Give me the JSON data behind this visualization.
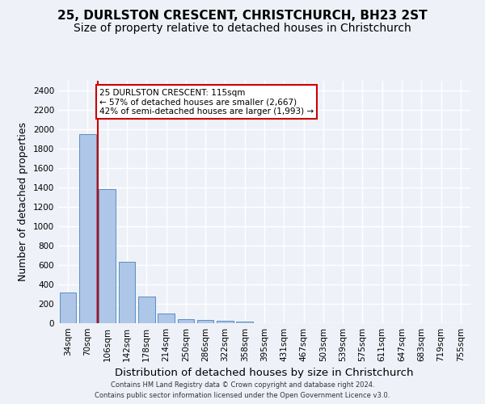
{
  "title1": "25, DURLSTON CRESCENT, CHRISTCHURCH, BH23 2ST",
  "title2": "Size of property relative to detached houses in Christchurch",
  "xlabel": "Distribution of detached houses by size in Christchurch",
  "ylabel": "Number of detached properties",
  "footnote1": "Contains HM Land Registry data © Crown copyright and database right 2024.",
  "footnote2": "Contains public sector information licensed under the Open Government Licence v3.0.",
  "bar_labels": [
    "34sqm",
    "70sqm",
    "106sqm",
    "142sqm",
    "178sqm",
    "214sqm",
    "250sqm",
    "286sqm",
    "322sqm",
    "358sqm",
    "395sqm",
    "431sqm",
    "467sqm",
    "503sqm",
    "539sqm",
    "575sqm",
    "611sqm",
    "647sqm",
    "683sqm",
    "719sqm",
    "755sqm"
  ],
  "bar_values": [
    315,
    1950,
    1385,
    630,
    275,
    100,
    45,
    32,
    22,
    18,
    0,
    0,
    0,
    0,
    0,
    0,
    0,
    0,
    0,
    0,
    0
  ],
  "bar_color": "#aec6e8",
  "bar_edge_color": "#5a8fc2",
  "ref_line_color": "#cc0000",
  "ref_line_x": 1.5,
  "annotation_title": "25 DURLSTON CRESCENT: 115sqm",
  "annotation_line1": "← 57% of detached houses are smaller (2,667)",
  "annotation_line2": "42% of semi-detached houses are larger (1,993) →",
  "annotation_box_color": "#ffffff",
  "annotation_box_edge": "#cc0000",
  "ylim": [
    0,
    2500
  ],
  "yticks": [
    0,
    200,
    400,
    600,
    800,
    1000,
    1200,
    1400,
    1600,
    1800,
    2000,
    2200,
    2400
  ],
  "background_color": "#eef2f8",
  "grid_color": "#ffffff",
  "title_fontsize": 11,
  "subtitle_fontsize": 10,
  "axis_label_fontsize": 9,
  "tick_fontsize": 7.5,
  "footnote_fontsize": 6
}
